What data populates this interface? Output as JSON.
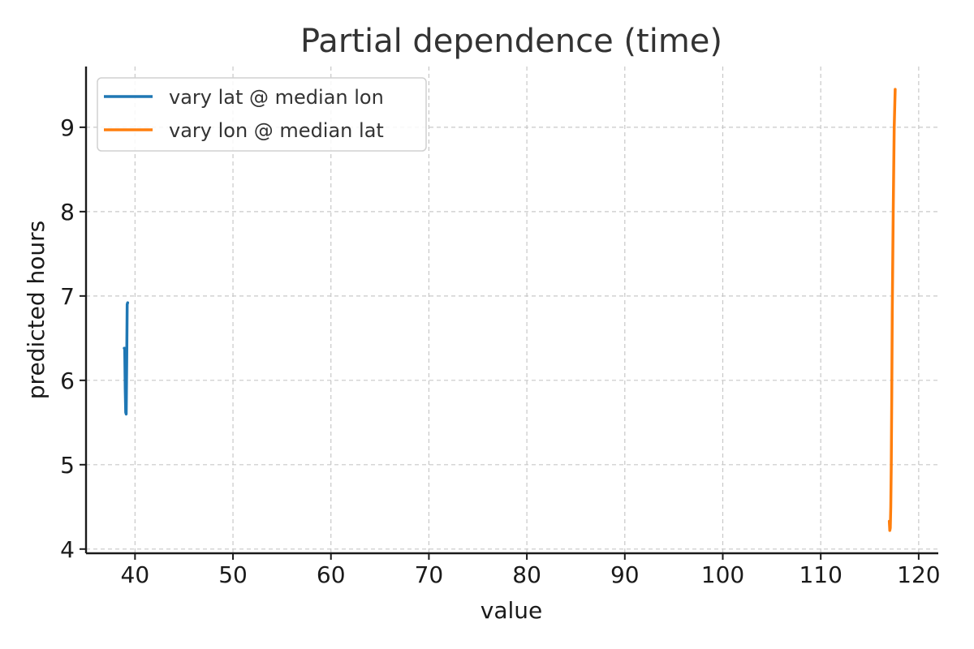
{
  "chart_data": {
    "type": "line",
    "title": "Partial dependence (time)",
    "xlabel": "value",
    "ylabel": "predicted hours",
    "xlim": [
      35,
      122
    ],
    "ylim": [
      3.95,
      9.72
    ],
    "xticks": [
      40,
      50,
      60,
      70,
      80,
      90,
      100,
      110,
      120
    ],
    "yticks": [
      4,
      5,
      6,
      7,
      8,
      9
    ],
    "grid": true,
    "legend_position": "top-left",
    "series": [
      {
        "name": "vary lat @ median lon",
        "color": "#1f77b4",
        "x": [
          38.9,
          38.95,
          39.0,
          39.05,
          39.1,
          39.15,
          39.2,
          39.25
        ],
        "y": [
          6.38,
          6.38,
          5.9,
          5.62,
          5.6,
          6.2,
          6.9,
          6.92
        ]
      },
      {
        "name": "vary lon @ median lat",
        "color": "#ff7f0e",
        "x": [
          117.0,
          117.05,
          117.1,
          117.15,
          117.2,
          117.25,
          117.3,
          117.4,
          117.5,
          117.6
        ],
        "y": [
          4.33,
          4.22,
          4.25,
          4.5,
          5.0,
          5.8,
          6.8,
          8.0,
          9.0,
          9.45
        ]
      }
    ]
  }
}
